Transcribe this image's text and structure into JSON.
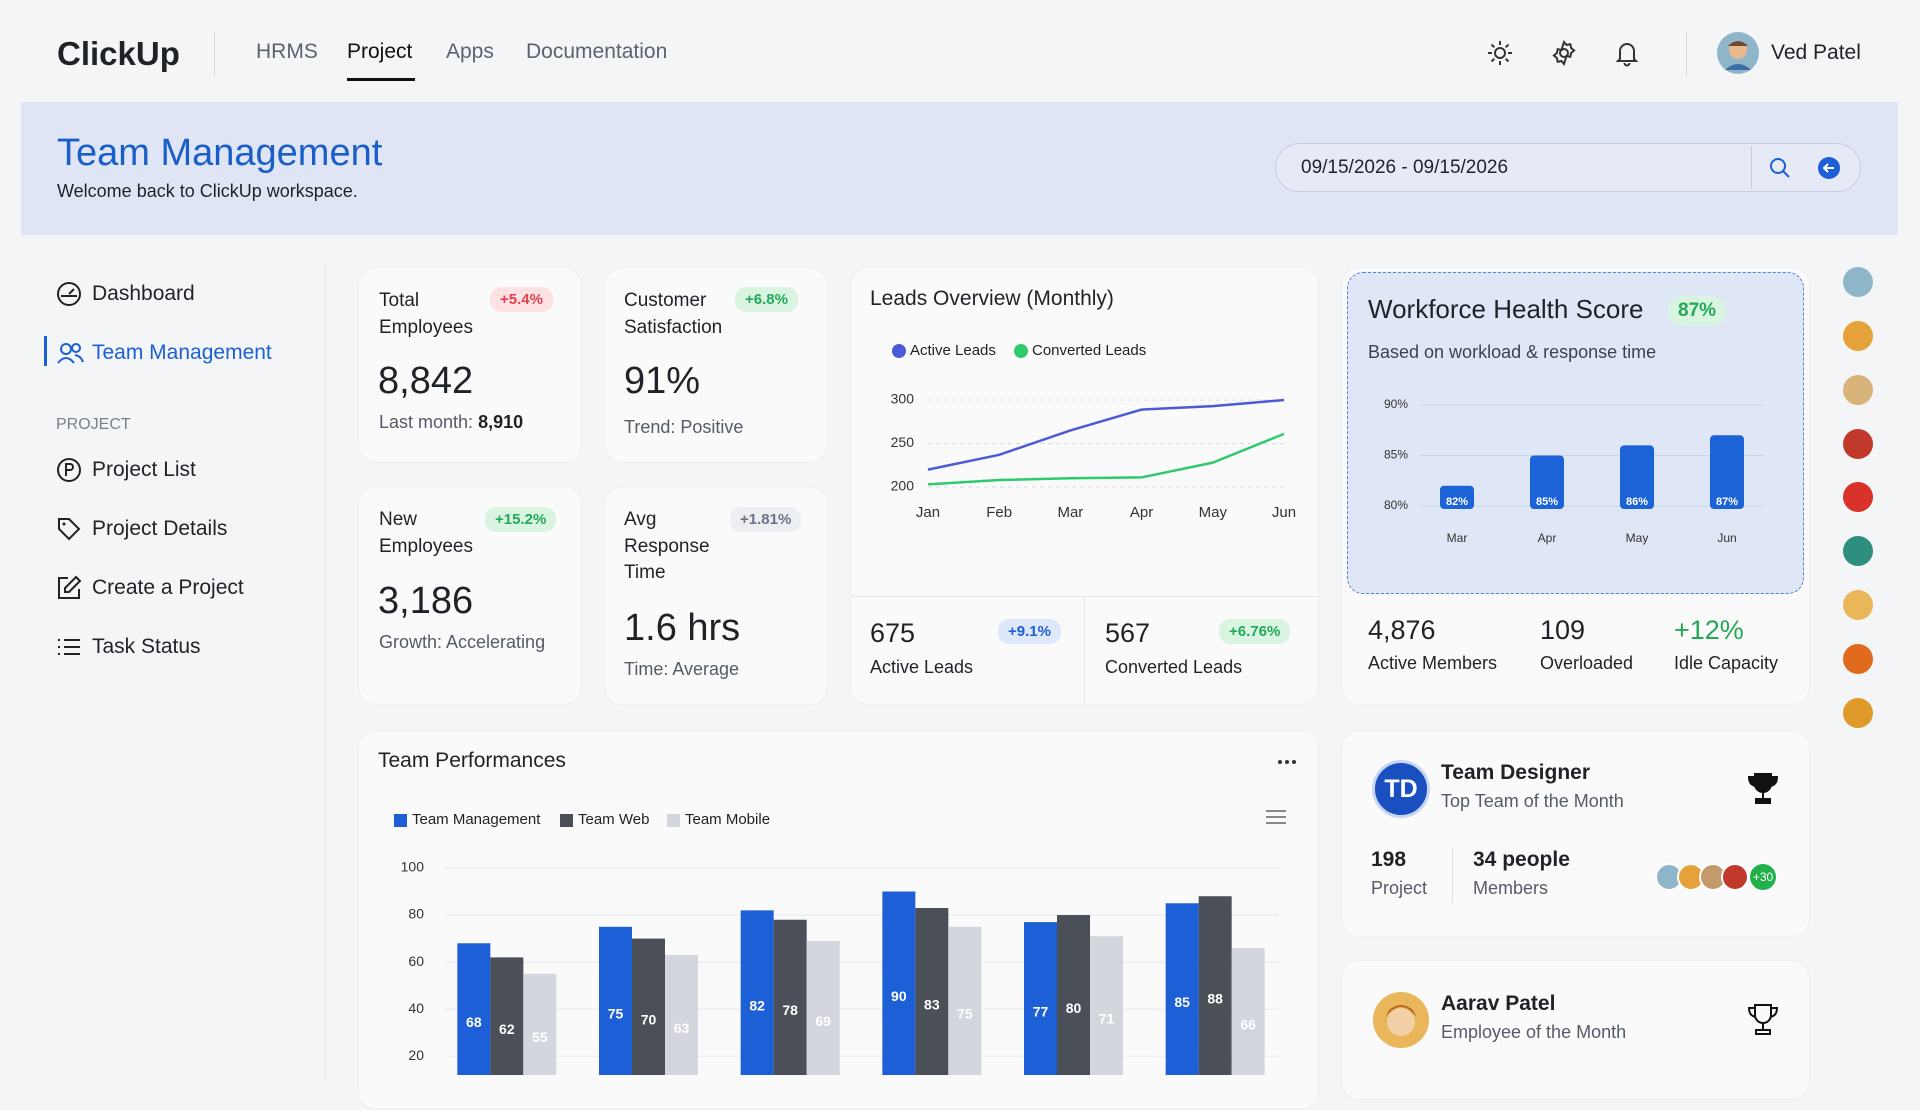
{
  "nav": {
    "brand": "ClickUp",
    "links": [
      "HRMS",
      "Project",
      "Apps",
      "Documentation"
    ],
    "user": "Ved Patel"
  },
  "header": {
    "title": "Team Management",
    "subtitle": "Welcome back to ClickUp workspace.",
    "date_range": "09/15/2026 - 09/15/2026"
  },
  "sidebar": {
    "items": [
      "Dashboard",
      "Team Management"
    ],
    "section": "PROJECT",
    "project_items": [
      "Project List",
      "Project Details",
      "Create a Project",
      "Task Status"
    ]
  },
  "kpis": [
    {
      "label": "Total Employees",
      "badge": "+5.4%",
      "value": "8,842",
      "note": "Last month:",
      "note_value": "8,910"
    },
    {
      "label": "Customer Satisfaction",
      "badge": "+6.8%",
      "value": "91%",
      "note": "Trend: Positive"
    },
    {
      "label": "New Employees",
      "badge": "+15.2%",
      "value": "3,186",
      "note": "Growth: Accelerating"
    },
    {
      "label": "Avg Response Time",
      "badge": "+1.81%",
      "value": "1.6 hrs",
      "note": "Time: Average"
    }
  ],
  "chart_data": [
    {
      "type": "line",
      "title": "Leads Overview (Monthly)",
      "categories": [
        "Jan",
        "Feb",
        "Mar",
        "Apr",
        "May",
        "Jun"
      ],
      "series": [
        {
          "name": "Active Leads",
          "color": "#4b5bd8",
          "values": [
            220,
            237,
            265,
            289,
            293,
            300
          ]
        },
        {
          "name": "Converted Leads",
          "color": "#2fca6b",
          "values": [
            203,
            208,
            210,
            211,
            228,
            261
          ]
        }
      ],
      "ylim": [
        200,
        300
      ],
      "yticks": [
        200,
        250,
        300
      ],
      "grid": true
    },
    {
      "type": "bar",
      "title": "Workforce Health Score",
      "subtitle": "Based on workload & response time",
      "categories": [
        "Mar",
        "Apr",
        "May",
        "Jun"
      ],
      "values": [
        82,
        85,
        86,
        87
      ],
      "value_labels": [
        "82%",
        "85%",
        "86%",
        "87%"
      ],
      "color": "#1d63d8",
      "ylim": [
        79.7,
        90
      ],
      "yticks": [
        {
          "value": 80,
          "label": "80%"
        },
        {
          "value": 85,
          "label": "85%"
        },
        {
          "value": 90,
          "label": "90%"
        }
      ],
      "grid": true
    },
    {
      "type": "bar",
      "title": "Team Performances",
      "categories": [
        null,
        null,
        null,
        null,
        null,
        null
      ],
      "series": [
        {
          "name": "Team Management",
          "color": "#1d5fd6",
          "values": [
            68,
            75,
            82,
            90,
            77,
            85
          ]
        },
        {
          "name": "Team Web",
          "color": "#4a4f58",
          "values": [
            62,
            70,
            78,
            83,
            80,
            88
          ]
        },
        {
          "name": "Team Mobile",
          "color": "#d3d6dc",
          "values": [
            55,
            63,
            69,
            75,
            71,
            66
          ]
        }
      ],
      "ylim": [
        12,
        100
      ],
      "yticks": [
        20,
        40,
        60,
        80,
        100
      ],
      "grid": true
    }
  ],
  "leads_stats": [
    {
      "value": "675",
      "badge": "+9.1%",
      "label": "Active Leads"
    },
    {
      "value": "567",
      "badge": "+6.76%",
      "label": "Converted Leads"
    }
  ],
  "workforce": {
    "badge": "87%",
    "stats": [
      {
        "value": "4,876",
        "label": "Active Members"
      },
      {
        "value": "109",
        "label": "Overloaded"
      },
      {
        "value": "+12%",
        "label": "Idle Capacity"
      }
    ]
  },
  "team_of_month": {
    "initials": "TD",
    "name": "Team Designer",
    "subtitle": "Top Team of the Month",
    "projects": "198",
    "projects_label": "Project",
    "members": "34 people",
    "members_label": "Members",
    "extra": "+30"
  },
  "employee_of_month": {
    "name": "Aarav Patel",
    "subtitle": "Employee of the Month"
  }
}
